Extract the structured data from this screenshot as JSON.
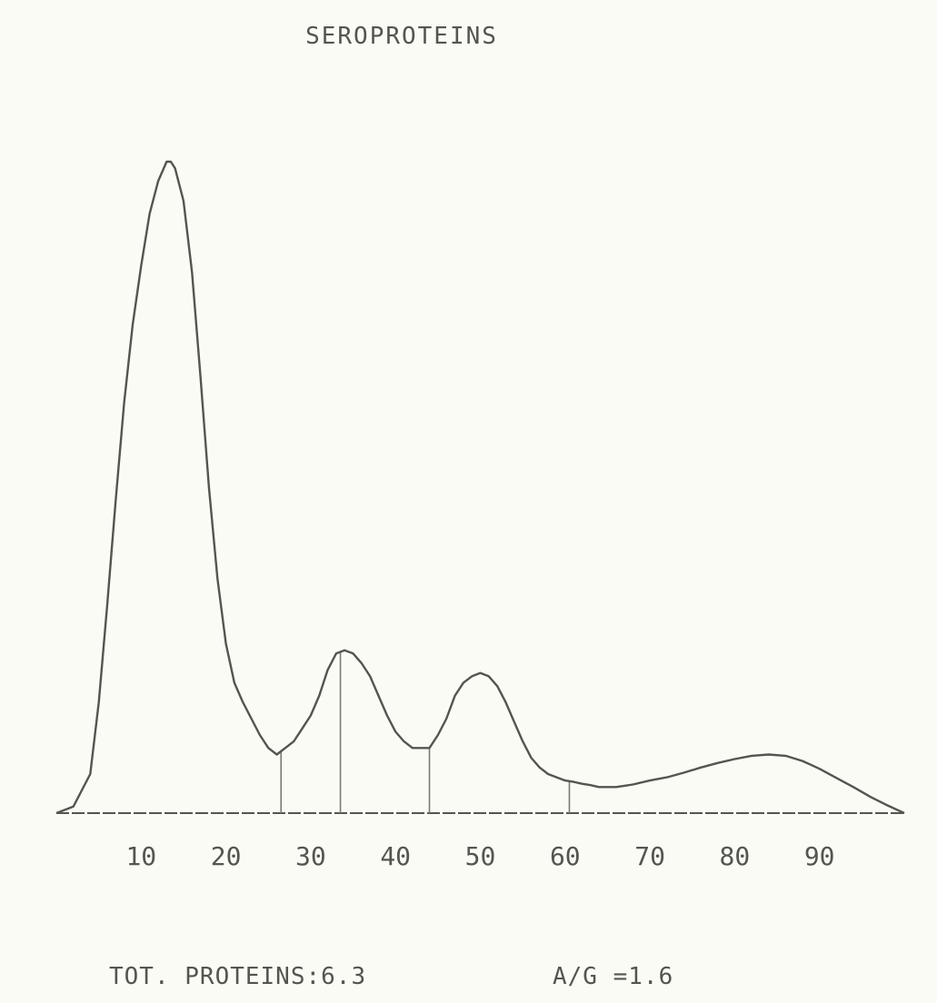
{
  "chart_data": {
    "type": "line",
    "title": "SEROPROTEINS",
    "xlabel": "",
    "ylabel": "",
    "xlim": [
      0,
      100
    ],
    "ylim": [
      0,
      1
    ],
    "grid": false,
    "x_ticks": [
      10,
      20,
      30,
      40,
      50,
      60,
      70,
      80,
      90
    ],
    "x_tick_labels": [
      "10",
      "20",
      "30",
      "40",
      "50",
      "60",
      "70",
      "80",
      "90"
    ],
    "fraction_dividers": [
      26.5,
      33.5,
      44,
      60.5
    ],
    "series": [
      {
        "x": [
          0,
          2,
          4,
          5,
          6,
          7,
          8,
          9,
          10,
          11,
          12,
          13,
          13.5,
          14,
          15,
          16,
          17,
          18,
          19,
          20,
          21,
          22,
          23,
          24,
          25,
          26,
          27,
          28,
          29,
          30,
          31,
          32,
          33,
          34,
          35,
          36,
          37,
          38,
          39,
          40,
          41,
          42,
          43,
          44,
          45,
          46,
          47,
          48,
          49,
          50,
          51,
          52,
          53,
          54,
          55,
          56,
          57,
          58,
          59,
          60,
          61,
          62,
          63,
          64,
          65,
          66,
          67,
          68,
          70,
          72,
          74,
          76,
          78,
          80,
          82,
          84,
          86,
          88,
          90,
          92,
          94,
          96,
          98,
          100
        ],
        "y": [
          0,
          0.01,
          0.06,
          0.17,
          0.32,
          0.48,
          0.63,
          0.75,
          0.84,
          0.92,
          0.97,
          1.0,
          1.0,
          0.99,
          0.94,
          0.83,
          0.67,
          0.5,
          0.36,
          0.26,
          0.2,
          0.17,
          0.145,
          0.12,
          0.1,
          0.09,
          0.1,
          0.11,
          0.13,
          0.15,
          0.18,
          0.22,
          0.245,
          0.25,
          0.245,
          0.23,
          0.21,
          0.18,
          0.15,
          0.125,
          0.11,
          0.1,
          0.1,
          0.1,
          0.12,
          0.145,
          0.18,
          0.2,
          0.21,
          0.215,
          0.21,
          0.195,
          0.17,
          0.14,
          0.11,
          0.085,
          0.07,
          0.06,
          0.055,
          0.05,
          0.048,
          0.045,
          0.043,
          0.04,
          0.04,
          0.04,
          0.042,
          0.044,
          0.05,
          0.055,
          0.062,
          0.07,
          0.077,
          0.083,
          0.088,
          0.09,
          0.088,
          0.08,
          0.068,
          0.054,
          0.04,
          0.025,
          0.012,
          0.0
        ]
      }
    ]
  },
  "footer": {
    "total_proteins": "TOT. PROTEINS:6.3",
    "ag_ratio": "A/G =1.6"
  }
}
